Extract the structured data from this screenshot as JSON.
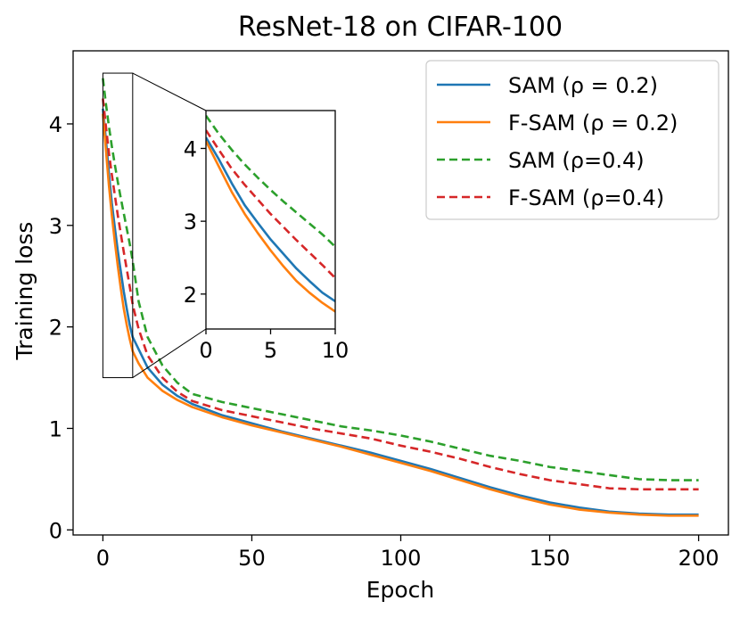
{
  "chart_data": {
    "type": "line",
    "title": "ResNet-18 on CIFAR-100",
    "xlabel": "Epoch",
    "ylabel": "Training loss",
    "xlim": [
      -10,
      210
    ],
    "ylim": [
      -0.05,
      4.72
    ],
    "xticks": [
      0,
      50,
      100,
      150,
      200
    ],
    "yticks": [
      0,
      1,
      2,
      3,
      4
    ],
    "legend_position": "top-right",
    "series": [
      {
        "name": "SAM (ρ = 0.2)",
        "color": "#1f77b4",
        "dash": "solid",
        "x": [
          0,
          1,
          2,
          3,
          4,
          5,
          6,
          7,
          8,
          9,
          10,
          12,
          15,
          20,
          25,
          30,
          40,
          50,
          60,
          70,
          80,
          90,
          100,
          110,
          120,
          130,
          140,
          150,
          160,
          170,
          180,
          190,
          200
        ],
        "values": [
          4.15,
          3.85,
          3.52,
          3.22,
          2.98,
          2.75,
          2.55,
          2.35,
          2.18,
          2.02,
          1.9,
          1.78,
          1.6,
          1.43,
          1.32,
          1.24,
          1.13,
          1.05,
          0.97,
          0.9,
          0.83,
          0.76,
          0.68,
          0.6,
          0.51,
          0.42,
          0.34,
          0.27,
          0.22,
          0.18,
          0.16,
          0.15,
          0.15
        ]
      },
      {
        "name": "F-SAM (ρ = 0.2)",
        "color": "#ff7f0e",
        "dash": "solid",
        "x": [
          0,
          1,
          2,
          3,
          4,
          5,
          6,
          7,
          8,
          9,
          10,
          12,
          15,
          20,
          25,
          30,
          40,
          50,
          60,
          70,
          80,
          90,
          100,
          110,
          120,
          130,
          140,
          150,
          160,
          170,
          180,
          190,
          200
        ],
        "values": [
          4.1,
          3.75,
          3.4,
          3.1,
          2.84,
          2.6,
          2.38,
          2.18,
          2.02,
          1.88,
          1.76,
          1.64,
          1.5,
          1.37,
          1.28,
          1.21,
          1.11,
          1.03,
          0.96,
          0.89,
          0.82,
          0.74,
          0.66,
          0.58,
          0.49,
          0.4,
          0.32,
          0.25,
          0.2,
          0.17,
          0.15,
          0.14,
          0.14
        ]
      },
      {
        "name": "SAM (ρ=0.4)",
        "color": "#2ca02c",
        "dash": "dashed",
        "x": [
          0,
          1,
          2,
          3,
          4,
          5,
          6,
          7,
          8,
          9,
          10,
          12,
          15,
          20,
          25,
          30,
          40,
          50,
          60,
          70,
          80,
          90,
          100,
          110,
          120,
          130,
          140,
          150,
          160,
          170,
          180,
          190,
          200
        ],
        "values": [
          4.45,
          4.2,
          3.98,
          3.78,
          3.6,
          3.43,
          3.27,
          3.12,
          2.97,
          2.82,
          2.65,
          2.25,
          1.9,
          1.62,
          1.45,
          1.34,
          1.26,
          1.2,
          1.14,
          1.08,
          1.02,
          0.98,
          0.93,
          0.87,
          0.8,
          0.73,
          0.68,
          0.62,
          0.58,
          0.54,
          0.5,
          0.49,
          0.49
        ]
      },
      {
        "name": "F-SAM (ρ=0.4)",
        "color": "#d62728",
        "dash": "dashed",
        "x": [
          0,
          1,
          2,
          3,
          4,
          5,
          6,
          7,
          8,
          9,
          10,
          12,
          15,
          20,
          25,
          30,
          40,
          50,
          60,
          70,
          80,
          90,
          100,
          110,
          120,
          130,
          140,
          150,
          160,
          170,
          180,
          190,
          200
        ],
        "values": [
          4.25,
          3.98,
          3.72,
          3.5,
          3.3,
          3.1,
          2.92,
          2.74,
          2.57,
          2.4,
          2.22,
          1.98,
          1.72,
          1.5,
          1.36,
          1.27,
          1.18,
          1.12,
          1.06,
          1.0,
          0.95,
          0.9,
          0.83,
          0.77,
          0.7,
          0.62,
          0.55,
          0.49,
          0.45,
          0.41,
          0.4,
          0.4,
          0.4
        ]
      }
    ],
    "zoom_box": {
      "xlim": [
        0,
        10
      ],
      "ylim": [
        1.5,
        4.5
      ]
    },
    "inset": {
      "xlim": [
        0,
        10
      ],
      "ylim": [
        1.52,
        4.52
      ],
      "xticks": [
        0,
        5,
        10
      ],
      "yticks": [
        2,
        3,
        4
      ]
    }
  }
}
